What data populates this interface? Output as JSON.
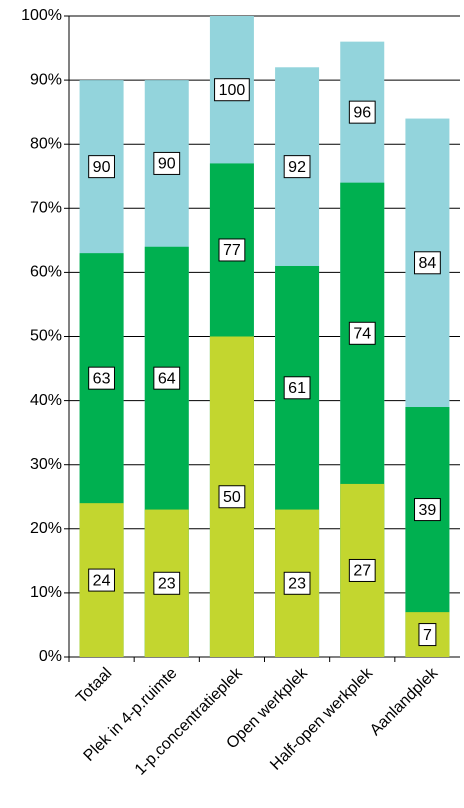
{
  "chart_data": {
    "type": "overlap_bar",
    "categories": [
      "Totaal",
      "Plek in 4-p.ruimte",
      "1-p.concentratieplek",
      "Open werkplek",
      "Half-open werkplek",
      "Aanlandplek"
    ],
    "series": [
      {
        "color": "#c3d62f",
        "values": [
          24,
          23,
          50,
          23,
          27,
          7
        ]
      },
      {
        "color": "#00b050",
        "values": [
          63,
          64,
          77,
          61,
          74,
          39
        ]
      },
      {
        "color": "#93d4dc",
        "values": [
          90,
          90,
          100,
          92,
          96,
          84
        ]
      }
    ],
    "ylim": [
      0,
      100
    ],
    "yticks": [
      {
        "value": 0,
        "label": "0%"
      },
      {
        "value": 10,
        "label": "10%"
      },
      {
        "value": 20,
        "label": "20%"
      },
      {
        "value": 30,
        "label": "30%"
      },
      {
        "value": 40,
        "label": "40%"
      },
      {
        "value": 50,
        "label": "50%"
      },
      {
        "value": 60,
        "label": "60%"
      },
      {
        "value": 70,
        "label": "70%"
      },
      {
        "value": 80,
        "label": "80%"
      },
      {
        "value": 90,
        "label": "90%"
      },
      {
        "value": 100,
        "label": "100%"
      }
    ],
    "grid": true
  }
}
